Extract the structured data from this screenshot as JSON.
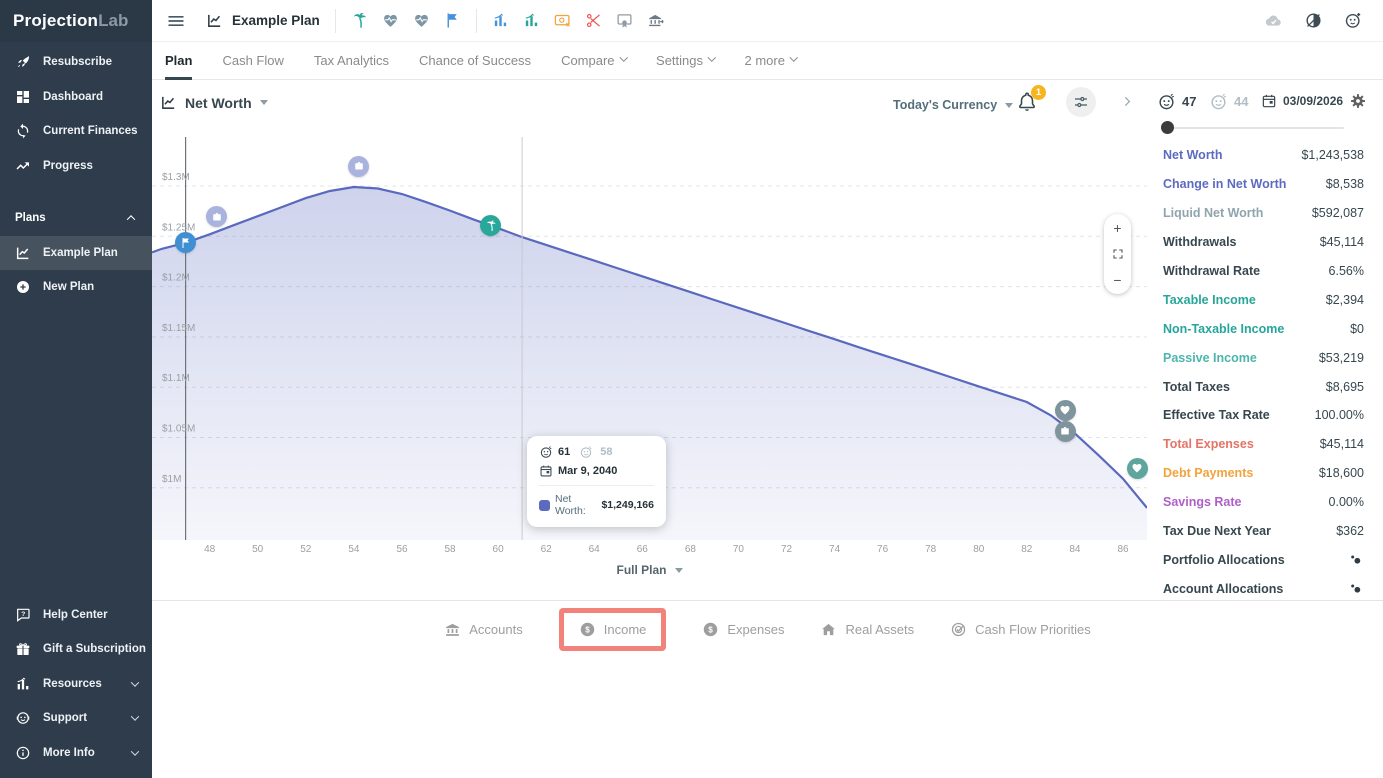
{
  "brand": {
    "part1": "Projection",
    "part2": "Lab"
  },
  "header": {
    "plan_name": "Example Plan",
    "milestone_icons": [
      {
        "name": "palm-tree",
        "color": "#26a69a"
      },
      {
        "name": "heart-pulse",
        "color": "#7d96a5"
      },
      {
        "name": "heart-pulse",
        "color": "#7d96a5"
      },
      {
        "name": "flag",
        "color": "#4791db"
      }
    ],
    "event_icons": [
      {
        "name": "chart-bars",
        "color": "#4791db"
      },
      {
        "name": "chart-bars",
        "color": "#26a69a"
      },
      {
        "name": "card-money",
        "color": "#f2a33c"
      },
      {
        "name": "scissors-cut",
        "color": "#ef5350"
      },
      {
        "name": "badge",
        "color": "#8f9aa3"
      },
      {
        "name": "bank-out",
        "color": "#6d7a84"
      }
    ],
    "right_icons": [
      {
        "name": "cloud-check",
        "color": "#c3c9cd"
      },
      {
        "name": "theme-toggle",
        "color": "#3f4c55"
      },
      {
        "name": "account-add",
        "color": "#3f4c55"
      }
    ]
  },
  "plan_tabs": [
    {
      "label": "Plan",
      "active": true
    },
    {
      "label": "Cash Flow"
    },
    {
      "label": "Tax Analytics"
    },
    {
      "label": "Chance of Success"
    },
    {
      "label": "Compare",
      "dropdown": true
    },
    {
      "label": "Settings",
      "dropdown": true
    },
    {
      "label": "2 more",
      "dropdown": true
    }
  ],
  "sidebar": {
    "top_items": [
      {
        "icon": "rocket",
        "label": "Resubscribe"
      },
      {
        "icon": "dashboard",
        "label": "Dashboard"
      },
      {
        "icon": "sync",
        "label": "Current Finances"
      },
      {
        "icon": "trending",
        "label": "Progress"
      }
    ],
    "plans_header": {
      "label": "Plans"
    },
    "plan_items": [
      {
        "icon": "chart-line",
        "label": "Example Plan",
        "active": true
      },
      {
        "icon": "plus-circle",
        "label": "New Plan"
      }
    ],
    "bottom_items": [
      {
        "icon": "help-bubble",
        "label": "Help Center"
      },
      {
        "icon": "gift",
        "label": "Gift a Subscription"
      },
      {
        "icon": "chart-bars",
        "label": "Resources",
        "chevron": true
      },
      {
        "icon": "headset",
        "label": "Support",
        "chevron": true
      },
      {
        "icon": "info",
        "label": "More Info",
        "chevron": true
      }
    ]
  },
  "toolbar": {
    "metric_label": "Net Worth",
    "currency_label": "Today's Currency",
    "notification_count": "1",
    "age_primary": "47",
    "age_secondary": "44",
    "date": "03/09/2026",
    "zoom_in": "+",
    "zoom_out": "−"
  },
  "chart_data": {
    "type": "area",
    "title": "Net Worth",
    "series": [
      {
        "name": "Net Worth",
        "points": [
          [
            45.6,
            1234000
          ],
          [
            46,
            1237500
          ],
          [
            47,
            1243538
          ],
          [
            48,
            1252000
          ],
          [
            49,
            1261000
          ],
          [
            50,
            1270000
          ],
          [
            51,
            1279000
          ],
          [
            52,
            1288000
          ],
          [
            53,
            1295000
          ],
          [
            54,
            1299000
          ],
          [
            55,
            1297500
          ],
          [
            56,
            1292000
          ],
          [
            57,
            1284000
          ],
          [
            58,
            1275500
          ],
          [
            59,
            1266500
          ],
          [
            60,
            1258000
          ],
          [
            61,
            1249166
          ],
          [
            62,
            1241400
          ],
          [
            63,
            1233600
          ],
          [
            64,
            1225800
          ],
          [
            65,
            1218000
          ],
          [
            66,
            1210200
          ],
          [
            67,
            1202400
          ],
          [
            68,
            1194500
          ],
          [
            69,
            1186700
          ],
          [
            70,
            1178900
          ],
          [
            71,
            1171100
          ],
          [
            72,
            1163300
          ],
          [
            73,
            1155500
          ],
          [
            74,
            1147700
          ],
          [
            75,
            1139800
          ],
          [
            76,
            1132100
          ],
          [
            77,
            1124300
          ],
          [
            78,
            1116500
          ],
          [
            79,
            1108600
          ],
          [
            80,
            1100800
          ],
          [
            81,
            1093000
          ],
          [
            82,
            1085300
          ],
          [
            83,
            1072000
          ],
          [
            84,
            1054000
          ],
          [
            85,
            1032000
          ],
          [
            86,
            1009000
          ],
          [
            87,
            980000
          ]
        ]
      }
    ],
    "x_ticks": [
      48,
      50,
      52,
      54,
      56,
      58,
      60,
      62,
      64,
      66,
      68,
      70,
      72,
      74,
      76,
      78,
      80,
      82,
      84,
      86
    ],
    "y_ticks": [
      {
        "label": "$1.3M",
        "value": 1300000
      },
      {
        "label": "$1.25M",
        "value": 1250000
      },
      {
        "label": "$1.2M",
        "value": 1200000
      },
      {
        "label": "$1.15M",
        "value": 1150000
      },
      {
        "label": "$1.1M",
        "value": 1100000
      },
      {
        "label": "$1.05M",
        "value": 1050000
      },
      {
        "label": "$1M",
        "value": 1000000
      }
    ],
    "xlim": [
      45.6,
      87.0
    ],
    "ylim": [
      948100,
      1348700
    ],
    "grid_dashed": true,
    "line_color": "#5a68bd",
    "fill_color": "#5c6bc0",
    "today_age": 47,
    "hover_age": 61,
    "markers": [
      {
        "icon": "flag",
        "age": 47,
        "dy": 0,
        "color": "#3f8fd2"
      },
      {
        "icon": "briefcase",
        "age": 48.3,
        "dy": -15,
        "color": "#a9b3dd"
      },
      {
        "icon": "briefcase",
        "age": 54.2,
        "dy": -21,
        "color": "#a9b3dd"
      },
      {
        "icon": "palm-tree",
        "age": 59.7,
        "dy": 0,
        "color": "#2aa79b"
      },
      {
        "icon": "heart-pulse",
        "age": 83.6,
        "dy": -16,
        "color": "#7f949d"
      },
      {
        "icon": "briefcase",
        "age": 83.6,
        "dy": 5,
        "color": "#7f949d"
      },
      {
        "icon": "heart-pulse",
        "age": 86.6,
        "dy": -28,
        "color": "#5ea59e"
      }
    ]
  },
  "tooltip": {
    "age_primary": "61",
    "age_secondary": "58",
    "date": "Mar 9, 2040",
    "series_label": "Net Worth:",
    "value": "$1,249,166"
  },
  "range_label": "Full Plan",
  "stats": {
    "rows": [
      {
        "label": "Net Worth",
        "value": "$1,243,538",
        "color": "#5c6bc0"
      },
      {
        "label": "Change in Net Worth",
        "value": "$8,538",
        "color": "#5c6bc0"
      },
      {
        "label": "Liquid Net Worth",
        "value": "$592,087",
        "color": "#90a4ae"
      },
      {
        "label": "Withdrawals",
        "value": "$45,114",
        "color": "#37474f"
      },
      {
        "label": "Withdrawal Rate",
        "value": "6.56%",
        "color": "#37474f"
      },
      {
        "label": "Taxable Income",
        "value": "$2,394",
        "color": "#26a69a"
      },
      {
        "label": "Non-Taxable Income",
        "value": "$0",
        "color": "#26a69a"
      },
      {
        "label": "Passive Income",
        "value": "$53,219",
        "color": "#4db6ac"
      },
      {
        "label": "Total Taxes",
        "value": "$8,695",
        "color": "#37474f"
      },
      {
        "label": "Effective Tax Rate",
        "value": "100.00%",
        "color": "#37474f"
      },
      {
        "label": "Total Expenses",
        "value": "$45,114",
        "color": "#e57368"
      },
      {
        "label": "Debt Payments",
        "value": "$18,600",
        "color": "#f2a33c"
      },
      {
        "label": "Savings Rate",
        "value": "0.00%",
        "color": "#b05fc9"
      },
      {
        "label": "Tax Due Next Year",
        "value": "$362",
        "color": "#37474f"
      },
      {
        "label": "Portfolio Allocations",
        "value": "",
        "icon": "dots-bubble",
        "color": "#37474f"
      },
      {
        "label": "Account Allocations",
        "value": "",
        "icon": "dots-bubble",
        "color": "#37474f"
      }
    ]
  },
  "bottom_tabs": [
    {
      "icon": "bank",
      "label": "Accounts"
    },
    {
      "icon": "dollar-circle",
      "label": "Income",
      "highlighted": true
    },
    {
      "icon": "dollar-circle",
      "label": "Expenses"
    },
    {
      "icon": "home",
      "label": "Real Assets"
    },
    {
      "icon": "target",
      "label": "Cash Flow Priorities"
    }
  ]
}
